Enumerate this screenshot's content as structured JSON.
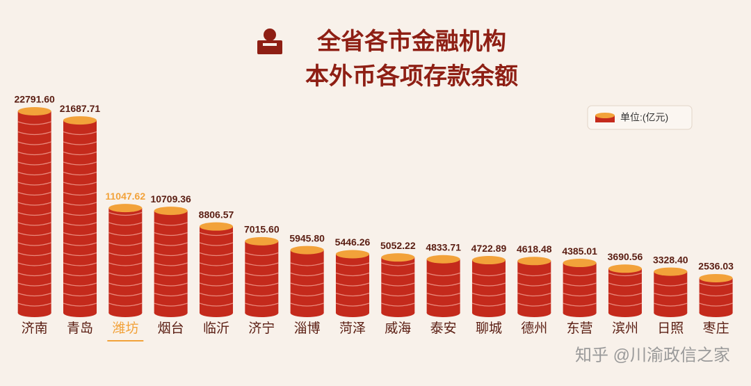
{
  "chart_data": {
    "type": "coin-bar",
    "title": "全省各市金融机构",
    "subtitle": "本外币各项存款余额",
    "unit_label": "单位:(亿元)",
    "watermark": "知乎 @川渝政信之家",
    "categories": [
      "济南",
      "青岛",
      "潍坊",
      "烟台",
      "临沂",
      "济宁",
      "淄博",
      "菏泽",
      "威海",
      "泰安",
      "聊城",
      "德州",
      "东营",
      "滨州",
      "日照",
      "枣庄"
    ],
    "values": [
      22791.6,
      21687.71,
      11047.62,
      10709.36,
      8806.57,
      7015.6,
      5945.8,
      5446.26,
      5052.22,
      4833.71,
      4722.89,
      4618.48,
      4385.01,
      3690.56,
      3328.4,
      2536.03
    ],
    "value_labels": [
      "22791.60",
      "21687.71",
      "11047.62",
      "10709.36",
      "8806.57",
      "7015.60",
      "5945.80",
      "5446.26",
      "5052.22",
      "4833.71",
      "4722.89",
      "4618.48",
      "4385.01",
      "3690.56",
      "3328.40",
      "2536.03"
    ],
    "color": "#c42a1c",
    "top_color": "#f2a23a",
    "highlight_index": 2
  }
}
